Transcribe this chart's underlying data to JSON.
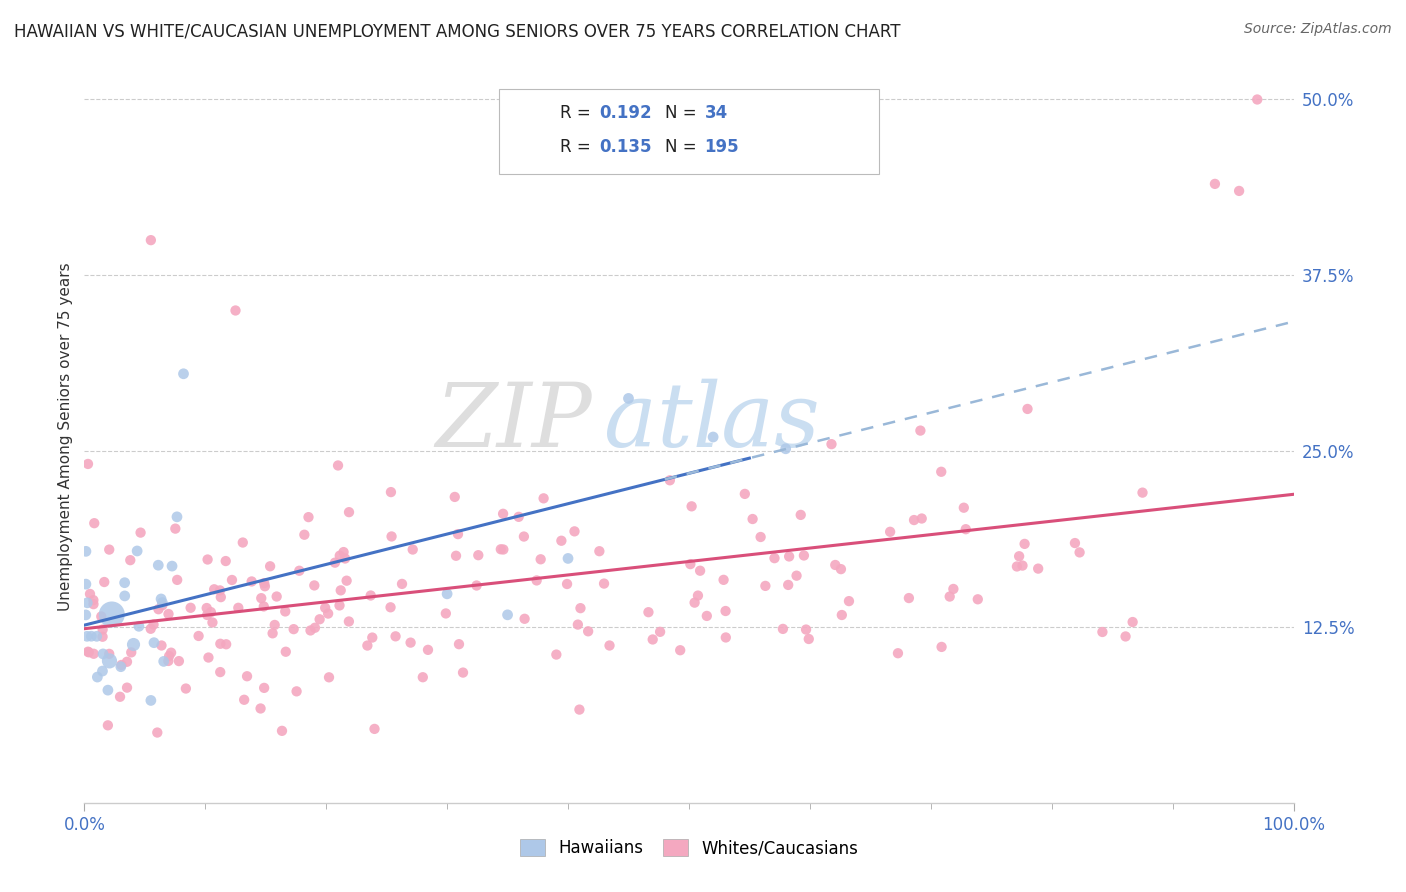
{
  "title": "HAWAIIAN VS WHITE/CAUCASIAN UNEMPLOYMENT AMONG SENIORS OVER 75 YEARS CORRELATION CHART",
  "source": "Source: ZipAtlas.com",
  "ylabel": "Unemployment Among Seniors over 75 years",
  "xlim": [
    0.0,
    1.0
  ],
  "ylim": [
    0.0,
    0.52
  ],
  "yticks": [
    0.125,
    0.25,
    0.375,
    0.5
  ],
  "ytick_labels": [
    "12.5%",
    "25.0%",
    "37.5%",
    "50.0%"
  ],
  "xtick_labels": [
    "0.0%",
    "100.0%"
  ],
  "hawaiian_color": "#aec8e8",
  "caucasian_color": "#f4a8c0",
  "trend_hawaiian_color": "#4472c4",
  "trend_caucasian_color": "#d94f7a",
  "trend_dashed_color": "#9ab8d8",
  "background_color": "#ffffff",
  "grid_color": "#cccccc",
  "tick_color": "#4472c4",
  "title_color": "#222222",
  "source_color": "#666666",
  "legend_text_color_label": "#222222",
  "legend_text_color_value": "#4472c4"
}
